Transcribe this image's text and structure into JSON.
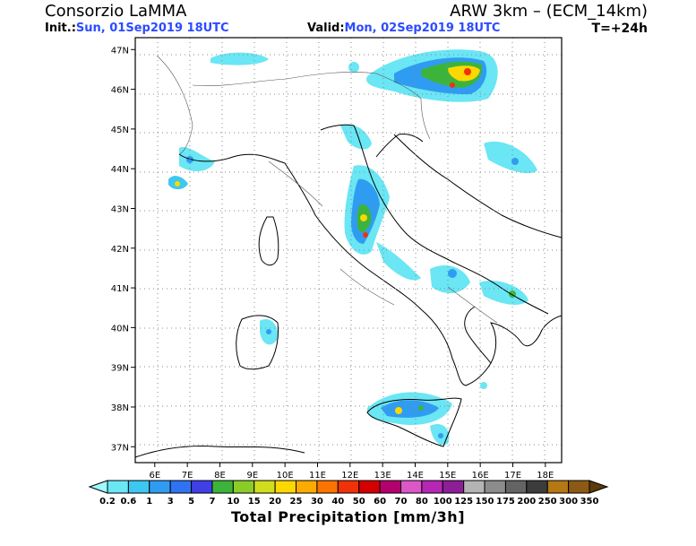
{
  "header": {
    "organization": "Consorzio LaMMA",
    "model": "ARW 3km – (ECM_14km)",
    "init_label": "Init.:",
    "init_value": "Sun, 01Sep2019 18UTC",
    "valid_label": "Valid:",
    "valid_value": "Mon, 02Sep2019 18UTC",
    "lead_time": "T=+24h"
  },
  "map": {
    "lon_ticks": [
      "6E",
      "7E",
      "8E",
      "9E",
      "10E",
      "11E",
      "12E",
      "13E",
      "14E",
      "15E",
      "16E",
      "17E",
      "18E"
    ],
    "lat_ticks": [
      "47N",
      "46N",
      "45N",
      "44N",
      "43N",
      "42N",
      "41N",
      "40N",
      "39N",
      "38N",
      "37N"
    ],
    "lon_range": [
      5.4,
      18.5
    ],
    "lat_range": [
      36.6,
      47.3
    ]
  },
  "colorbar": {
    "title": "Total Precipitation [mm/3h]",
    "labels": [
      "0.2",
      "0.6",
      "1",
      "3",
      "5",
      "7",
      "10",
      "15",
      "20",
      "25",
      "30",
      "40",
      "50",
      "60",
      "70",
      "80",
      "100",
      "125",
      "150",
      "175",
      "200",
      "250",
      "300",
      "350"
    ],
    "colors": [
      "#9ffcfc",
      "#6ae6f4",
      "#3cc8f0",
      "#2f9cf2",
      "#2f73f2",
      "#4040e6",
      "#3cb43c",
      "#8ccc28",
      "#d2dc1e",
      "#fcd800",
      "#fcac00",
      "#fc7400",
      "#f0320a",
      "#d40000",
      "#b4006e",
      "#dc58c8",
      "#b428b4",
      "#8c1e96",
      "#b4b4b4",
      "#8c8c8c",
      "#646464",
      "#3c3c3c",
      "#b47814",
      "#8c5a14",
      "#5a3c0a"
    ]
  }
}
